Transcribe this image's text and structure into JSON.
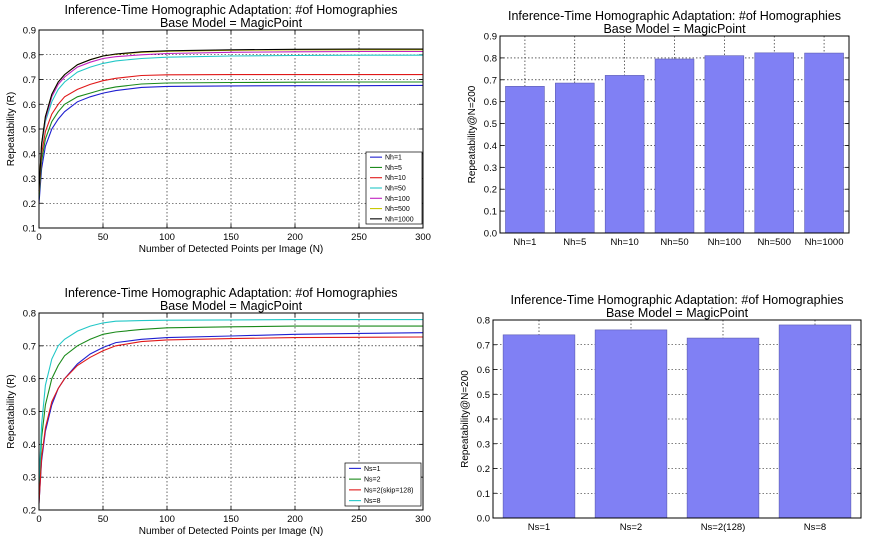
{
  "chart_data": [
    {
      "id": "top-left",
      "type": "line",
      "title": "Inference-Time Homographic Adaptation: #of Homographies",
      "subtitle": "Base Model = MagicPoint",
      "xlabel": "Number of Detected Points per Image (N)",
      "ylabel": "Repeatability (R)",
      "xlim": [
        0,
        300
      ],
      "ylim": [
        0.1,
        0.9
      ],
      "xticks": [
        0,
        50,
        100,
        150,
        200,
        250,
        300
      ],
      "yticks": [
        0.1,
        0.2,
        0.3,
        0.4,
        0.5,
        0.6,
        0.7,
        0.8,
        0.9
      ],
      "grid": true,
      "legend_position": "bottom-right",
      "x": [
        0,
        2,
        5,
        10,
        15,
        20,
        30,
        40,
        50,
        60,
        80,
        100,
        150,
        200,
        250,
        300
      ],
      "series": [
        {
          "name": "Nh=1",
          "color": "#1f1fd0",
          "values": [
            0.2,
            0.34,
            0.43,
            0.5,
            0.54,
            0.57,
            0.61,
            0.63,
            0.645,
            0.655,
            0.668,
            0.672,
            0.674,
            0.675,
            0.675,
            0.676
          ]
        },
        {
          "name": "Nh=5",
          "color": "#1a8a1a",
          "values": [
            0.22,
            0.37,
            0.46,
            0.53,
            0.57,
            0.6,
            0.63,
            0.645,
            0.66,
            0.67,
            0.682,
            0.686,
            0.688,
            0.689,
            0.69,
            0.69
          ]
        },
        {
          "name": "Nh=10",
          "color": "#e01818",
          "values": [
            0.24,
            0.4,
            0.49,
            0.56,
            0.6,
            0.63,
            0.66,
            0.68,
            0.695,
            0.705,
            0.716,
            0.719,
            0.72,
            0.72,
            0.72,
            0.72
          ]
        },
        {
          "name": "Nh=50",
          "color": "#22c7c7",
          "values": [
            0.25,
            0.43,
            0.53,
            0.61,
            0.66,
            0.69,
            0.73,
            0.75,
            0.765,
            0.775,
            0.785,
            0.79,
            0.795,
            0.797,
            0.798,
            0.798
          ]
        },
        {
          "name": "Nh=100",
          "color": "#c020c0",
          "values": [
            0.25,
            0.44,
            0.54,
            0.63,
            0.68,
            0.71,
            0.75,
            0.77,
            0.785,
            0.792,
            0.8,
            0.805,
            0.81,
            0.812,
            0.813,
            0.813
          ]
        },
        {
          "name": "Nh=500",
          "color": "#c8c800",
          "values": [
            0.25,
            0.44,
            0.55,
            0.64,
            0.69,
            0.72,
            0.76,
            0.78,
            0.795,
            0.802,
            0.81,
            0.814,
            0.818,
            0.82,
            0.82,
            0.82
          ]
        },
        {
          "name": "Nh=1000",
          "color": "#000000",
          "values": [
            0.25,
            0.44,
            0.55,
            0.64,
            0.69,
            0.72,
            0.76,
            0.78,
            0.795,
            0.803,
            0.812,
            0.816,
            0.82,
            0.822,
            0.823,
            0.823
          ]
        }
      ]
    },
    {
      "id": "top-right",
      "type": "bar",
      "title": "Inference-Time Homographic Adaptation: #of Homographies",
      "subtitle": "Base Model = MagicPoint",
      "xlabel": "",
      "ylabel": "Repeatability@N=200",
      "ylim": [
        0.0,
        0.9
      ],
      "yticks": [
        0.0,
        0.1,
        0.2,
        0.3,
        0.4,
        0.5,
        0.6,
        0.7,
        0.8,
        0.9
      ],
      "grid": true,
      "bar_color": "#8080f4",
      "categories": [
        "Nh=1",
        "Nh=5",
        "Nh=10",
        "Nh=50",
        "Nh=100",
        "Nh=500",
        "Nh=1000"
      ],
      "values": [
        0.67,
        0.685,
        0.72,
        0.795,
        0.81,
        0.823,
        0.822
      ]
    },
    {
      "id": "bottom-left",
      "type": "line",
      "title": "Inference-Time Homographic Adaptation: #of Homographies",
      "subtitle": "Base Model = MagicPoint",
      "xlabel": "Number of Detected Points per Image (N)",
      "ylabel": "Repeatability (R)",
      "xlim": [
        0,
        300
      ],
      "ylim": [
        0.2,
        0.8
      ],
      "xticks": [
        0,
        50,
        100,
        150,
        200,
        250,
        300
      ],
      "yticks": [
        0.2,
        0.3,
        0.4,
        0.5,
        0.6,
        0.7,
        0.8
      ],
      "grid": true,
      "legend_position": "bottom-right",
      "x": [
        0,
        2,
        5,
        10,
        15,
        20,
        30,
        40,
        50,
        60,
        80,
        100,
        150,
        200,
        250,
        300
      ],
      "series": [
        {
          "name": "Ns=1",
          "color": "#1f1fd0",
          "values": [
            0.22,
            0.35,
            0.44,
            0.52,
            0.57,
            0.6,
            0.645,
            0.675,
            0.695,
            0.71,
            0.72,
            0.725,
            0.73,
            0.735,
            0.738,
            0.74
          ]
        },
        {
          "name": "Ns=2",
          "color": "#1a8a1a",
          "values": [
            0.25,
            0.42,
            0.52,
            0.6,
            0.64,
            0.67,
            0.7,
            0.72,
            0.735,
            0.742,
            0.75,
            0.755,
            0.758,
            0.76,
            0.76,
            0.76
          ]
        },
        {
          "name": "Ns=2(skip=128)",
          "color": "#e01818",
          "values": [
            0.22,
            0.36,
            0.45,
            0.53,
            0.57,
            0.6,
            0.64,
            0.665,
            0.685,
            0.7,
            0.713,
            0.718,
            0.722,
            0.725,
            0.726,
            0.727
          ]
        },
        {
          "name": "Ns=8",
          "color": "#22c7c7",
          "values": [
            0.28,
            0.46,
            0.58,
            0.66,
            0.7,
            0.72,
            0.745,
            0.76,
            0.77,
            0.775,
            0.777,
            0.778,
            0.779,
            0.78,
            0.78,
            0.78
          ]
        }
      ]
    },
    {
      "id": "bottom-right",
      "type": "bar",
      "title": "Inference-Time Homographic Adaptation: #of Homographies",
      "subtitle": "Base Model = MagicPoint",
      "xlabel": "",
      "ylabel": "Repeatability@N=200",
      "ylim": [
        0.0,
        0.8
      ],
      "yticks": [
        0.0,
        0.1,
        0.2,
        0.3,
        0.4,
        0.5,
        0.6,
        0.7,
        0.8
      ],
      "grid": true,
      "bar_color": "#8080f4",
      "categories": [
        "Ns=1",
        "Ns=2",
        "Ns=2(128)",
        "Ns=8"
      ],
      "values": [
        0.74,
        0.76,
        0.727,
        0.78
      ]
    }
  ]
}
